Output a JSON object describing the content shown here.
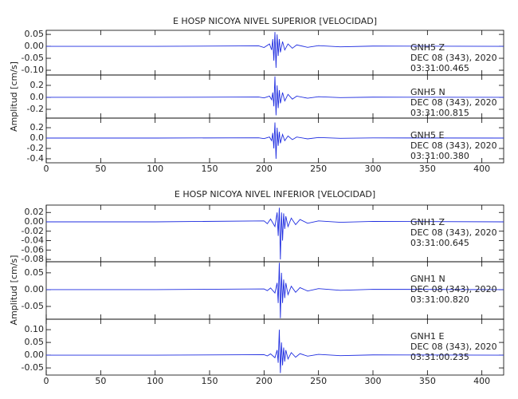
{
  "chart_data": [
    {
      "type": "line",
      "title": "E HOSP NICOYA NIVEL SUPERIOR [VELOCIDAD]",
      "ylabel": "Amplitud [cm/s]",
      "xlim": [
        0,
        420
      ],
      "xticks": [
        0,
        50,
        100,
        150,
        200,
        250,
        300,
        350,
        400
      ],
      "x": [
        0,
        100,
        195,
        200,
        205,
        207,
        208,
        209,
        210,
        211,
        212,
        213,
        214,
        215,
        217,
        219,
        222,
        226,
        230,
        240,
        250,
        270,
        300,
        420
      ],
      "series": [
        {
          "station": "GNH5  Z",
          "date": "DEC 08 (343), 2020",
          "time": "03:31:00.465",
          "color": "#1f2de0",
          "ylim": [
            -0.12,
            0.067
          ],
          "yticks": [
            0.05,
            {
              "value": 0,
              "label": "0.00"
            },
            -0.05,
            {
              "value": -0.1,
              "label": "-0.10"
            }
          ],
          "values": [
            0,
            0,
            0.002,
            -0.005,
            0.01,
            -0.015,
            0.03,
            -0.06,
            0.06,
            -0.09,
            0.05,
            -0.04,
            0.03,
            -0.025,
            0.02,
            -0.015,
            0.01,
            -0.008,
            0.006,
            -0.004,
            0.003,
            -0.002,
            0.001,
            0
          ]
        },
        {
          "station": "GNH5  N",
          "date": "DEC 08 (343), 2020",
          "time": "03:31:00.815",
          "color": "#1f2de0",
          "ylim": [
            -0.347,
            0.373
          ],
          "yticks": [
            0.2,
            {
              "value": 0,
              "label": "0.0"
            },
            -0.2
          ],
          "values": [
            0,
            0,
            0.005,
            -0.01,
            0.02,
            -0.04,
            0.08,
            -0.15,
            0.35,
            -0.3,
            0.2,
            -0.18,
            0.12,
            -0.1,
            0.08,
            -0.06,
            0.05,
            -0.03,
            0.02,
            -0.015,
            0.01,
            -0.005,
            0.003,
            0
          ]
        },
        {
          "station": "GNH5  E",
          "date": "DEC 08 (343), 2020",
          "time": "03:31:00.380",
          "color": "#1f2de0",
          "ylim": [
            -0.477,
            0.385
          ],
          "yticks": [
            0.2,
            {
              "value": 0,
              "label": "0.0"
            },
            -0.2,
            -0.4
          ],
          "values": [
            0,
            0,
            0.005,
            -0.01,
            0.02,
            -0.05,
            0.1,
            -0.2,
            0.3,
            -0.4,
            0.2,
            -0.15,
            0.12,
            -0.1,
            0.07,
            -0.05,
            0.04,
            -0.03,
            0.02,
            -0.015,
            0.01,
            -0.005,
            0.003,
            0
          ]
        }
      ]
    },
    {
      "type": "line",
      "title": "E HOSP NICOYA NIVEL INFERIOR [VELOCIDAD]",
      "ylabel": "Amplitud [cm/s]",
      "xlim": [
        0,
        420
      ],
      "xticks": [
        0,
        50,
        100,
        150,
        200,
        250,
        300,
        350,
        400
      ],
      "x": [
        0,
        100,
        200,
        203,
        206,
        210,
        212,
        213,
        214,
        215,
        216,
        217,
        218,
        219,
        220,
        222,
        225,
        229,
        233,
        240,
        250,
        270,
        300,
        420
      ],
      "series": [
        {
          "station": "GNH1  Z",
          "date": "DEC 08 (343), 2020",
          "time": "03:31:00.645",
          "color": "#1f2de0",
          "ylim": [
            -0.085,
            0.0357
          ],
          "yticks": [
            0.02,
            {
              "value": 0,
              "label": "0.00"
            },
            -0.02,
            -0.04,
            -0.06,
            -0.08
          ],
          "values": [
            0,
            0,
            0.002,
            -0.004,
            0.006,
            -0.01,
            0.02,
            -0.03,
            0.03,
            -0.08,
            0.02,
            -0.04,
            0.018,
            -0.015,
            0.012,
            -0.01,
            0.008,
            -0.006,
            0.005,
            -0.003,
            0.002,
            -0.001,
            0.001,
            0
          ]
        },
        {
          "station": "GNH1  N",
          "date": "DEC 08 (343), 2020",
          "time": "03:31:00.820",
          "color": "#1f2de0",
          "ylim": [
            -0.088,
            0.083
          ],
          "yticks": [
            0.05,
            {
              "value": 0,
              "label": "0.00"
            },
            -0.05
          ],
          "values": [
            0,
            0,
            0.002,
            -0.003,
            0.005,
            -0.01,
            0.02,
            -0.04,
            0.08,
            -0.085,
            0.05,
            -0.04,
            0.03,
            -0.025,
            0.02,
            -0.015,
            0.01,
            -0.008,
            0.006,
            -0.004,
            0.003,
            -0.002,
            0.001,
            0
          ]
        },
        {
          "station": "GNH1  E",
          "date": "DEC 08 (343), 2020",
          "time": "03:31:00.235",
          "color": "#1f2de0",
          "ylim": [
            -0.078,
            0.141
          ],
          "yticks": [
            {
              "value": 0.1,
              "label": "0.10"
            },
            0.05,
            {
              "value": 0,
              "label": "0.00"
            },
            -0.05
          ],
          "values": [
            0,
            0,
            0.002,
            -0.003,
            0.005,
            -0.01,
            0.02,
            -0.03,
            0.1,
            -0.07,
            0.05,
            -0.04,
            0.03,
            -0.025,
            0.02,
            -0.015,
            0.01,
            -0.008,
            0.006,
            -0.004,
            0.003,
            -0.002,
            0.001,
            0
          ]
        }
      ]
    }
  ]
}
